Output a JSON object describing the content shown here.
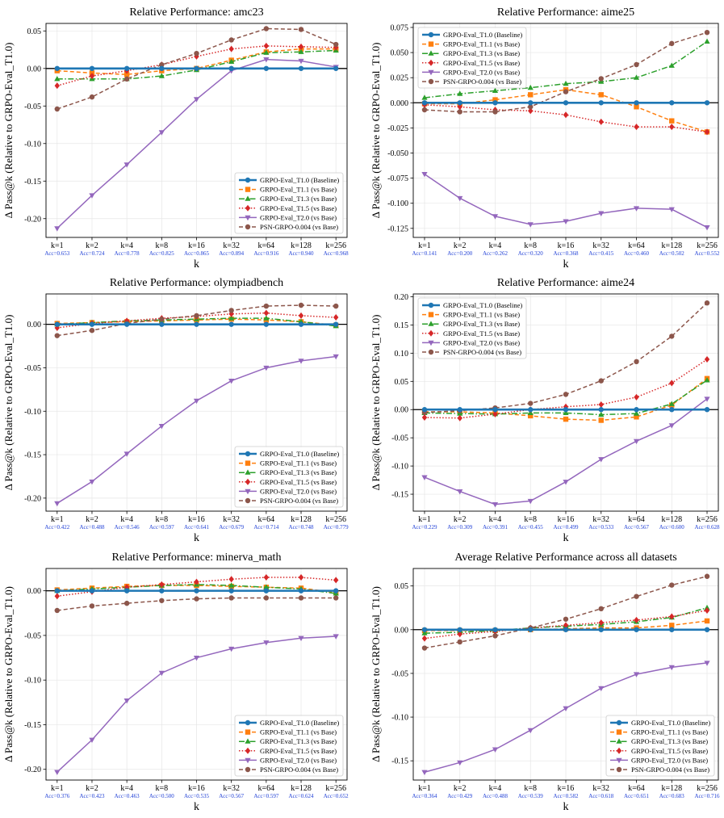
{
  "figure": {
    "ylabel": "Δ Pass@k (Relative to GRPO-Eval_T1.0)",
    "xlabel": "k",
    "k_labels": [
      "k=1",
      "k=2",
      "k=4",
      "k=8",
      "k=16",
      "k=32",
      "k=64",
      "k=128",
      "k=256"
    ],
    "legend": [
      {
        "name": "GRPO-Eval_T1.0 (Baseline)",
        "color": "#1f77b4",
        "marker": "circle",
        "dash": "solid"
      },
      {
        "name": "GRPO-Eval_T1.1 (vs Base)",
        "color": "#ff7f0e",
        "marker": "square",
        "dash": "dash"
      },
      {
        "name": "GRPO-Eval_T1.3 (vs Base)",
        "color": "#2ca02c",
        "marker": "triangle-up",
        "dash": "dashdot"
      },
      {
        "name": "GRPO-Eval_T1.5 (vs Base)",
        "color": "#d62728",
        "marker": "diamond",
        "dash": "dot"
      },
      {
        "name": "GRPO-Eval_T2.0 (vs Base)",
        "color": "#9467bd",
        "marker": "triangle-down",
        "dash": "solid"
      },
      {
        "name": "PSN-GRPO-0.004 (vs Base)",
        "color": "#8c564b",
        "marker": "circle",
        "dash": "dash"
      }
    ]
  },
  "chart_data": [
    {
      "type": "line",
      "title": "Relative Performance: amc23",
      "acc_labels": [
        "Acc=0.653",
        "Acc=0.724",
        "Acc=0.778",
        "Acc=0.825",
        "Acc=0.865",
        "Acc=0.894",
        "Acc=0.916",
        "Acc=0.940",
        "Acc=0.968"
      ],
      "ylim": [
        -0.225,
        0.06
      ],
      "yticks": [
        -0.2,
        -0.15,
        -0.1,
        -0.05,
        0.0,
        0.05
      ],
      "ytick_labels": [
        "-0.20",
        "-0.15",
        "-0.10",
        "-0.05",
        "0.00",
        "0.05"
      ],
      "legend_loc": "lower right",
      "series": [
        {
          "name": "GRPO-Eval_T1.0 (Baseline)",
          "values": [
            0,
            0,
            0,
            0,
            0,
            0,
            0,
            0,
            0
          ]
        },
        {
          "name": "GRPO-Eval_T1.1 (vs Base)",
          "values": [
            -0.003,
            -0.006,
            -0.008,
            -0.003,
            0.0,
            0.011,
            0.022,
            0.026,
            0.026
          ]
        },
        {
          "name": "GRPO-Eval_T1.3 (vs Base)",
          "values": [
            -0.014,
            -0.014,
            -0.014,
            -0.01,
            -0.002,
            0.009,
            0.021,
            0.022,
            0.024
          ]
        },
        {
          "name": "GRPO-Eval_T1.5 (vs Base)",
          "values": [
            -0.023,
            -0.01,
            -0.003,
            0.005,
            0.016,
            0.026,
            0.03,
            0.029,
            0.028
          ]
        },
        {
          "name": "GRPO-Eval_T2.0 (vs Base)",
          "values": [
            -0.213,
            -0.169,
            -0.128,
            -0.085,
            -0.041,
            -0.003,
            0.012,
            0.01,
            0.002
          ]
        },
        {
          "name": "PSN-GRPO-0.004 (vs Base)",
          "values": [
            -0.054,
            -0.038,
            -0.014,
            0.005,
            0.02,
            0.038,
            0.053,
            0.052,
            0.032
          ]
        }
      ]
    },
    {
      "type": "line",
      "title": "Relative Performance: aime25",
      "acc_labels": [
        "Acc=0.141",
        "Acc=0.200",
        "Acc=0.262",
        "Acc=0.320",
        "Acc=0.368",
        "Acc=0.415",
        "Acc=0.460",
        "Acc=0.502",
        "Acc=0.552"
      ],
      "ylim": [
        -0.134,
        0.079
      ],
      "yticks": [
        -0.125,
        -0.1,
        -0.075,
        -0.05,
        -0.025,
        0.0,
        0.025,
        0.05,
        0.075
      ],
      "ytick_labels": [
        "-0.125",
        "-0.100",
        "-0.075",
        "-0.050",
        "-0.025",
        "0.000",
        "0.025",
        "0.050",
        "0.075"
      ],
      "legend_loc": "upper left",
      "series": [
        {
          "name": "GRPO-Eval_T1.0 (Baseline)",
          "values": [
            0,
            0,
            0,
            0,
            0,
            0,
            0,
            0,
            0
          ]
        },
        {
          "name": "GRPO-Eval_T1.1 (vs Base)",
          "values": [
            -0.001,
            -0.001,
            0.003,
            0.008,
            0.013,
            0.008,
            -0.004,
            -0.018,
            -0.029
          ]
        },
        {
          "name": "GRPO-Eval_T1.3 (vs Base)",
          "values": [
            0.005,
            0.009,
            0.012,
            0.015,
            0.019,
            0.021,
            0.025,
            0.037,
            0.061
          ]
        },
        {
          "name": "GRPO-Eval_T1.5 (vs Base)",
          "values": [
            -0.002,
            -0.004,
            -0.007,
            -0.008,
            -0.012,
            -0.019,
            -0.024,
            -0.024,
            -0.029
          ]
        },
        {
          "name": "GRPO-Eval_T2.0 (vs Base)",
          "values": [
            -0.071,
            -0.095,
            -0.113,
            -0.121,
            -0.118,
            -0.11,
            -0.105,
            -0.106,
            -0.124
          ]
        },
        {
          "name": "PSN-GRPO-0.004 (vs Base)",
          "values": [
            -0.007,
            -0.009,
            -0.009,
            -0.004,
            0.011,
            0.024,
            0.038,
            0.059,
            0.07
          ]
        }
      ]
    },
    {
      "type": "line",
      "title": "Relative Performance: olympiadbench",
      "acc_labels": [
        "Acc=0.422",
        "Acc=0.488",
        "Acc=0.546",
        "Acc=0.597",
        "Acc=0.641",
        "Acc=0.679",
        "Acc=0.714",
        "Acc=0.748",
        "Acc=0.779"
      ],
      "ylim": [
        -0.215,
        0.035
      ],
      "yticks": [
        -0.2,
        -0.15,
        -0.1,
        -0.05,
        0.0
      ],
      "ytick_labels": [
        "-0.20",
        "-0.15",
        "-0.10",
        "-0.05",
        "0.00"
      ],
      "legend_loc": "lower right",
      "series": [
        {
          "name": "GRPO-Eval_T1.0 (Baseline)",
          "values": [
            0,
            0,
            0,
            0,
            0,
            0,
            0,
            0,
            0
          ]
        },
        {
          "name": "GRPO-Eval_T1.1 (vs Base)",
          "values": [
            0.001,
            0.002,
            0.003,
            0.004,
            0.005,
            0.006,
            0.005,
            0.003,
            -0.001
          ]
        },
        {
          "name": "GRPO-Eval_T1.3 (vs Base)",
          "values": [
            0.0,
            0.002,
            0.004,
            0.005,
            0.006,
            0.007,
            0.007,
            0.003,
            -0.002
          ]
        },
        {
          "name": "GRPO-Eval_T1.5 (vs Base)",
          "values": [
            -0.004,
            0.001,
            0.004,
            0.007,
            0.009,
            0.012,
            0.013,
            0.01,
            0.008
          ]
        },
        {
          "name": "GRPO-Eval_T2.0 (vs Base)",
          "values": [
            -0.206,
            -0.181,
            -0.149,
            -0.117,
            -0.088,
            -0.065,
            -0.05,
            -0.042,
            -0.037
          ]
        },
        {
          "name": "PSN-GRPO-0.004 (vs Base)",
          "values": [
            -0.013,
            -0.007,
            0.001,
            0.006,
            0.01,
            0.016,
            0.021,
            0.022,
            0.021
          ]
        }
      ]
    },
    {
      "type": "line",
      "title": "Relative Performance: aime24",
      "acc_labels": [
        "Acc=0.229",
        "Acc=0.309",
        "Acc=0.391",
        "Acc=0.455",
        "Acc=0.499",
        "Acc=0.533",
        "Acc=0.567",
        "Acc=0.600",
        "Acc=0.628"
      ],
      "ylim": [
        -0.18,
        0.205
      ],
      "yticks": [
        -0.15,
        -0.1,
        -0.05,
        0.0,
        0.05,
        0.1,
        0.15,
        0.2
      ],
      "ytick_labels": [
        "-0.15",
        "-0.10",
        "-0.05",
        "0.00",
        "0.05",
        "0.10",
        "0.15",
        "0.20"
      ],
      "legend_loc": "upper left",
      "series": [
        {
          "name": "GRPO-Eval_T1.0 (Baseline)",
          "values": [
            0,
            0,
            0,
            0,
            0,
            0,
            0,
            0,
            0
          ]
        },
        {
          "name": "GRPO-Eval_T1.1 (vs Base)",
          "values": [
            -0.004,
            -0.004,
            -0.006,
            -0.011,
            -0.017,
            -0.019,
            -0.013,
            0.008,
            0.055
          ]
        },
        {
          "name": "GRPO-Eval_T1.3 (vs Base)",
          "values": [
            -0.006,
            -0.007,
            -0.008,
            -0.006,
            -0.006,
            -0.009,
            -0.007,
            0.01,
            0.052
          ]
        },
        {
          "name": "GRPO-Eval_T1.5 (vs Base)",
          "values": [
            -0.014,
            -0.015,
            -0.008,
            0.0,
            0.005,
            0.009,
            0.022,
            0.047,
            0.089
          ]
        },
        {
          "name": "GRPO-Eval_T2.0 (vs Base)",
          "values": [
            -0.12,
            -0.145,
            -0.168,
            -0.162,
            -0.128,
            -0.088,
            -0.056,
            -0.028,
            0.019
          ]
        },
        {
          "name": "PSN-GRPO-0.004 (vs Base)",
          "values": [
            -0.005,
            -0.002,
            0.003,
            0.011,
            0.027,
            0.051,
            0.085,
            0.13,
            0.189
          ]
        }
      ]
    },
    {
      "type": "line",
      "title": "Relative Performance: minerva_math",
      "acc_labels": [
        "Acc=0.376",
        "Acc=0.423",
        "Acc=0.463",
        "Acc=0.500",
        "Acc=0.535",
        "Acc=0.567",
        "Acc=0.597",
        "Acc=0.624",
        "Acc=0.652"
      ],
      "ylim": [
        -0.212,
        0.025
      ],
      "yticks": [
        -0.2,
        -0.15,
        -0.1,
        -0.05,
        0.0
      ],
      "ytick_labels": [
        "-0.20",
        "-0.15",
        "-0.10",
        "-0.05",
        "0.00"
      ],
      "legend_loc": "lower right",
      "series": [
        {
          "name": "GRPO-Eval_T1.0 (Baseline)",
          "values": [
            0,
            0,
            0,
            0,
            0,
            0,
            0,
            0,
            0
          ]
        },
        {
          "name": "GRPO-Eval_T1.1 (vs Base)",
          "values": [
            0.001,
            0.003,
            0.005,
            0.006,
            0.006,
            0.005,
            0.004,
            0.003,
            -0.002
          ]
        },
        {
          "name": "GRPO-Eval_T1.3 (vs Base)",
          "values": [
            0.0,
            0.002,
            0.004,
            0.006,
            0.007,
            0.006,
            0.004,
            0.002,
            -0.003
          ]
        },
        {
          "name": "GRPO-Eval_T1.5 (vs Base)",
          "values": [
            -0.006,
            -0.001,
            0.004,
            0.007,
            0.01,
            0.013,
            0.015,
            0.015,
            0.012
          ]
        },
        {
          "name": "GRPO-Eval_T2.0 (vs Base)",
          "values": [
            -0.203,
            -0.167,
            -0.123,
            -0.092,
            -0.075,
            -0.065,
            -0.058,
            -0.053,
            -0.051
          ]
        },
        {
          "name": "PSN-GRPO-0.004 (vs Base)",
          "values": [
            -0.022,
            -0.017,
            -0.014,
            -0.011,
            -0.009,
            -0.008,
            -0.008,
            -0.008,
            -0.008
          ]
        }
      ]
    },
    {
      "type": "line",
      "title": "Average Relative Performance across all datasets",
      "acc_labels": [
        "Acc=0.364",
        "Acc=0.429",
        "Acc=0.488",
        "Acc=0.539",
        "Acc=0.582",
        "Acc=0.618",
        "Acc=0.651",
        "Acc=0.683",
        "Acc=0.716"
      ],
      "ylim": [
        -0.172,
        0.07
      ],
      "yticks": [
        -0.15,
        -0.1,
        -0.05,
        0.0,
        0.05
      ],
      "ytick_labels": [
        "-0.15",
        "-0.10",
        "-0.05",
        "0.00",
        "0.05"
      ],
      "legend_loc": "lower right",
      "series": [
        {
          "name": "GRPO-Eval_T1.0 (Baseline)",
          "values": [
            0,
            0,
            0,
            0,
            0,
            0,
            0,
            0,
            0
          ]
        },
        {
          "name": "GRPO-Eval_T1.1 (vs Base)",
          "values": [
            -0.001,
            -0.001,
            -0.001,
            0.0,
            0.001,
            0.002,
            0.002,
            0.005,
            0.01
          ]
        },
        {
          "name": "GRPO-Eval_T1.3 (vs Base)",
          "values": [
            -0.004,
            -0.003,
            -0.001,
            0.002,
            0.004,
            0.006,
            0.009,
            0.014,
            0.025
          ]
        },
        {
          "name": "GRPO-Eval_T1.5 (vs Base)",
          "values": [
            -0.01,
            -0.005,
            -0.002,
            0.002,
            0.005,
            0.008,
            0.011,
            0.015,
            0.022
          ]
        },
        {
          "name": "GRPO-Eval_T2.0 (vs Base)",
          "values": [
            -0.163,
            -0.152,
            -0.137,
            -0.115,
            -0.09,
            -0.067,
            -0.051,
            -0.043,
            -0.038
          ]
        },
        {
          "name": "PSN-GRPO-0.004 (vs Base)",
          "values": [
            -0.021,
            -0.014,
            -0.007,
            0.002,
            0.012,
            0.024,
            0.038,
            0.051,
            0.061
          ]
        }
      ]
    }
  ]
}
